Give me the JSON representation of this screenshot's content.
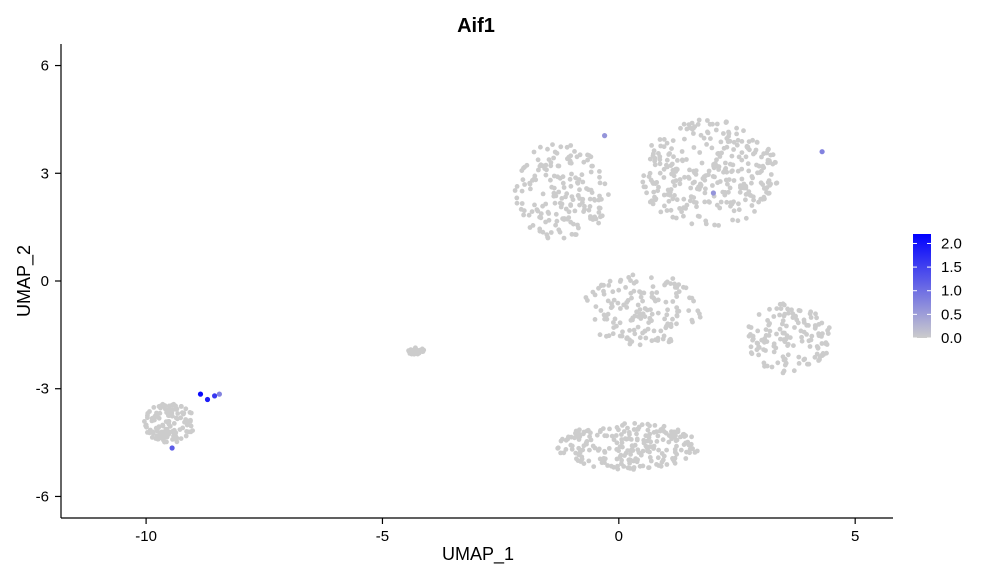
{
  "chart_data": {
    "type": "scatter",
    "title": "Aif1",
    "xlabel": "UMAP_1",
    "ylabel": "UMAP_2",
    "xlim": [
      -11.8,
      5.8
    ],
    "ylim": [
      -6.6,
      6.6
    ],
    "x_ticks": [
      -10,
      -5,
      0,
      5
    ],
    "y_ticks": [
      -6,
      -3,
      0,
      3,
      6
    ],
    "grid": false,
    "legend_position": "right",
    "color_scale": {
      "low_color": "#cccccc",
      "high_color": "#0000ff",
      "min": 0,
      "max": 2.2,
      "ticks": [
        "0.0",
        "0.5",
        "1.0",
        "1.5",
        "2.0"
      ]
    },
    "clusters": [
      {
        "center": [
          -9.5,
          -3.95
        ],
        "spread": [
          0.55,
          0.55
        ],
        "count": 130
      },
      {
        "center": [
          -4.3,
          -1.95
        ],
        "spread": [
          0.18,
          0.1
        ],
        "count": 35
      },
      {
        "center": [
          -1.2,
          2.5
        ],
        "spread": [
          1.0,
          1.4
        ],
        "count": 180
      },
      {
        "center": [
          1.9,
          3.0
        ],
        "spread": [
          1.5,
          1.5
        ],
        "count": 320
      },
      {
        "center": [
          0.5,
          -0.8
        ],
        "spread": [
          1.3,
          1.0
        ],
        "count": 160
      },
      {
        "center": [
          3.6,
          -1.6
        ],
        "spread": [
          0.9,
          1.0
        ],
        "count": 140
      },
      {
        "center": [
          0.2,
          -4.6
        ],
        "spread": [
          1.5,
          0.65
        ],
        "count": 230
      }
    ],
    "expressing_points": [
      {
        "x": -8.85,
        "y": -3.15,
        "value": 2.1
      },
      {
        "x": -8.7,
        "y": -3.3,
        "value": 1.9
      },
      {
        "x": -8.55,
        "y": -3.2,
        "value": 1.6
      },
      {
        "x": -8.45,
        "y": -3.15,
        "value": 0.8
      },
      {
        "x": -9.45,
        "y": -4.65,
        "value": 1.2
      },
      {
        "x": -0.3,
        "y": 4.05,
        "value": 0.6
      },
      {
        "x": 2.0,
        "y": 2.45,
        "value": 0.6
      },
      {
        "x": 4.3,
        "y": 3.6,
        "value": 0.8
      }
    ]
  }
}
